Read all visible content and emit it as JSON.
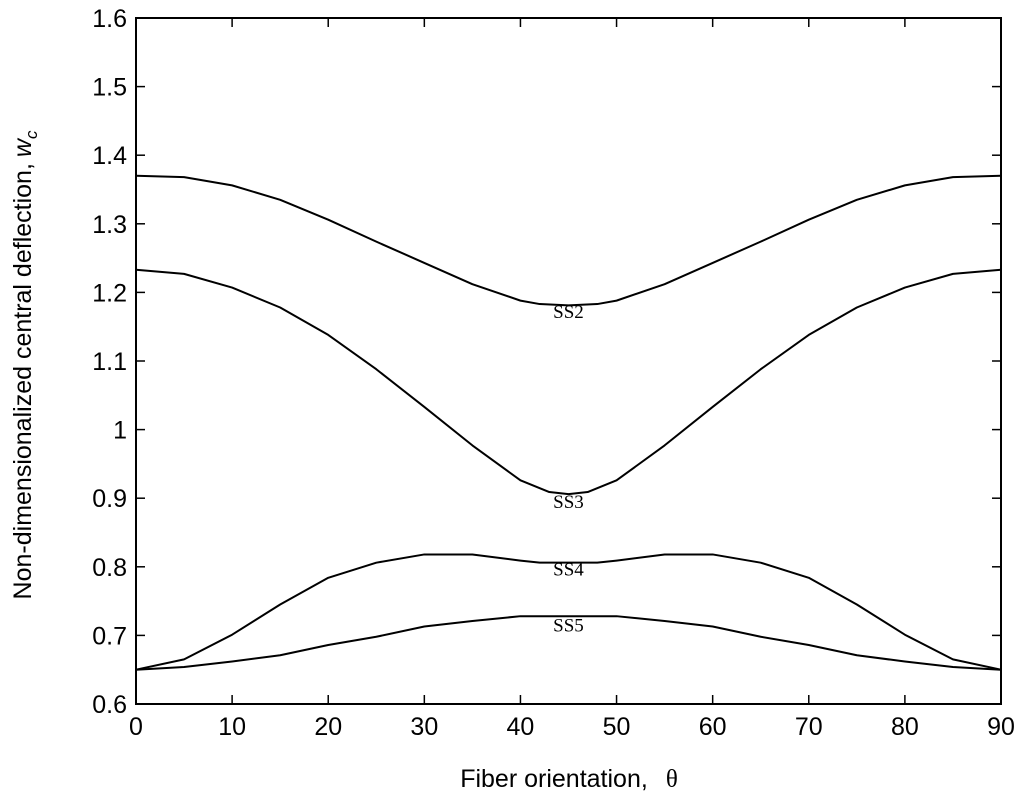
{
  "chart_data": {
    "type": "line",
    "xlabel": "Fiber orientation,",
    "xlabel_symbol": "θ",
    "ylabel": "Non-dimensionalized central deflection,",
    "ylabel_symbol": "w",
    "ylabel_subscript": "c",
    "xlim": [
      0,
      90
    ],
    "ylim": [
      0.6,
      1.6
    ],
    "xticks": [
      0,
      10,
      20,
      30,
      40,
      50,
      60,
      70,
      80,
      90
    ],
    "xtick_labels": [
      "0",
      "10",
      "20",
      "30",
      "40",
      "50",
      "60",
      "70",
      "80",
      "90"
    ],
    "yticks": [
      0.6,
      0.7,
      0.8,
      0.9,
      1.0,
      1.1,
      1.2,
      1.3,
      1.4,
      1.5,
      1.6
    ],
    "ytick_labels": [
      "0.6",
      "0.7",
      "0.8",
      "0.9",
      "1",
      "1.1",
      "1.2",
      "1.3",
      "1.4",
      "1.5",
      "1.6"
    ],
    "grid": false,
    "legend": "none",
    "line_color": "#000000",
    "series": [
      {
        "name": "SS2",
        "x": [
          0,
          5,
          10,
          15,
          20,
          25,
          30,
          35,
          40,
          42,
          45,
          48,
          50,
          55,
          60,
          65,
          70,
          75,
          80,
          85,
          90
        ],
        "y": [
          1.37,
          1.368,
          1.356,
          1.335,
          1.306,
          1.274,
          1.243,
          1.212,
          1.188,
          1.183,
          1.181,
          1.183,
          1.188,
          1.212,
          1.243,
          1.274,
          1.306,
          1.335,
          1.356,
          1.368,
          1.37
        ],
        "label_at": [
          45,
          1.163
        ]
      },
      {
        "name": "SS3",
        "x": [
          0,
          5,
          10,
          15,
          20,
          25,
          30,
          35,
          40,
          43,
          45,
          47,
          50,
          55,
          60,
          65,
          70,
          75,
          80,
          85,
          90
        ],
        "y": [
          1.233,
          1.227,
          1.207,
          1.178,
          1.138,
          1.088,
          1.033,
          0.977,
          0.926,
          0.909,
          0.906,
          0.909,
          0.926,
          0.977,
          1.033,
          1.088,
          1.138,
          1.178,
          1.207,
          1.227,
          1.233
        ],
        "label_at": [
          45,
          0.886
        ]
      },
      {
        "name": "SS4",
        "x": [
          0,
          5,
          10,
          15,
          20,
          25,
          30,
          35,
          40,
          42,
          45,
          48,
          50,
          55,
          60,
          65,
          70,
          75,
          80,
          85,
          90
        ],
        "y": [
          0.65,
          0.665,
          0.701,
          0.745,
          0.784,
          0.806,
          0.818,
          0.818,
          0.809,
          0.806,
          0.806,
          0.806,
          0.809,
          0.818,
          0.818,
          0.806,
          0.784,
          0.745,
          0.701,
          0.665,
          0.65
        ],
        "label_at": [
          45,
          0.787
        ]
      },
      {
        "name": "SS5",
        "x": [
          0,
          5,
          10,
          15,
          20,
          25,
          30,
          35,
          40,
          45,
          50,
          55,
          60,
          65,
          70,
          75,
          80,
          85,
          90
        ],
        "y": [
          0.65,
          0.654,
          0.662,
          0.671,
          0.686,
          0.698,
          0.713,
          0.721,
          0.728,
          0.728,
          0.728,
          0.721,
          0.713,
          0.698,
          0.686,
          0.671,
          0.662,
          0.654,
          0.65
        ],
        "label_at": [
          45,
          0.706
        ]
      }
    ]
  }
}
